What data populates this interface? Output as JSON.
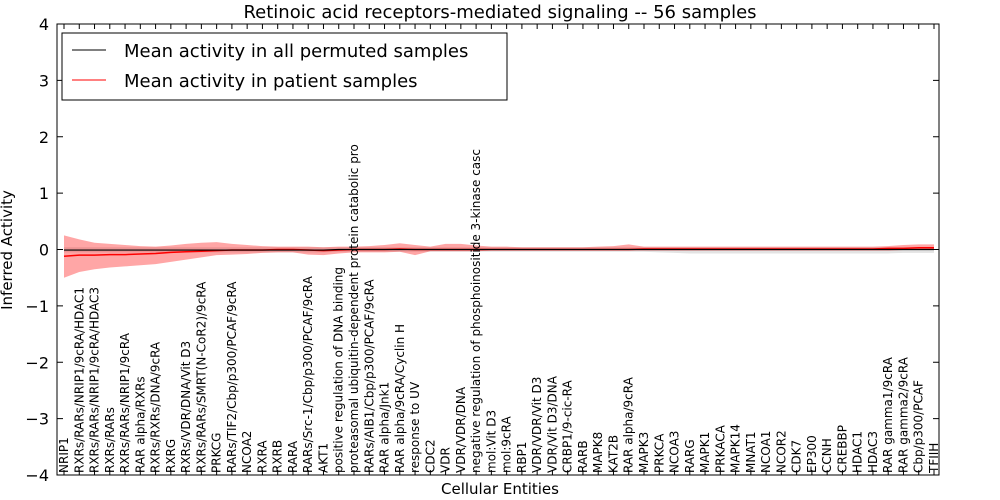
{
  "chart_data": {
    "type": "line",
    "title": "Retinoic acid receptors-mediated signaling -- 56 samples",
    "xlabel": "Cellular Entities",
    "ylabel": "Inferred Activity",
    "ylim": [
      -4,
      4
    ],
    "yticks": [
      "4",
      "3",
      "2",
      "1",
      "0",
      "−1",
      "−2",
      "−3",
      "−4"
    ],
    "legend": {
      "placement": "top-left",
      "entries": [
        {
          "label": "Mean activity in all permuted samples",
          "color": "#000000"
        },
        {
          "label": "Mean activity in patient samples",
          "color": "#ff0000"
        }
      ]
    },
    "categories": [
      "NRIP1",
      "RXRs/RARs/NRIP1/9cRA/HDAC1",
      "RXRs/RARs/NRIP1/9cRA/HDAC3",
      "RXRs/RARs",
      "RXRs/RARs/NRIP1/9cRA",
      "RAR alpha/RXRs",
      "RXRs/RXRs/DNA/9cRA",
      "RXRG",
      "RXRs/VDR/DNA/Vit D3",
      "RXRs/RARs/SMRT(N-CoR2)/9cRA",
      "PRKCG",
      "RARs/TIF2/Cbp/p300/PCAF/9cRA",
      "NCOA2",
      "RXRA",
      "RXRB",
      "RARA",
      "RARs/Src-1/Cbp/p300/PCAF/9cRA",
      "AKT1",
      "positive regulation of DNA binding",
      "proteasomal ubiquitin-dependent protein catabolic pro",
      "RARs/AIB1/Cbp/p300/PCAF/9cRA",
      "RAR alpha/Jnk1",
      "RAR alpha/9cRA/Cyclin H",
      "response to UV",
      "CDC2",
      "VDR",
      "VDR/VDR/DNA",
      "negative regulation of phosphoinositide 3-kinase casc",
      "mol:Vit D3",
      "mol:9cRA",
      "RBP1",
      "VDR/VDR/Vit D3",
      "VDR/Vit D3/DNA",
      "CRBP1/9-cic-RA",
      "RARB",
      "MAPK8",
      "KAT2B",
      "RAR alpha/9cRA",
      "MAPK3",
      "PRKCA",
      "NCOA3",
      "RARG",
      "MAPK1",
      "PRKACA",
      "MAPK14",
      "MNAT1",
      "NCOA1",
      "NCOR2",
      "CDK7",
      "EP300",
      "CCNH",
      "CREBBP",
      "HDAC1",
      "HDAC3",
      "RAR gamma1/9cRA",
      "RAR gamma2/9cRA",
      "Cbp/p300/PCAF",
      "TFIIH"
    ],
    "series": [
      {
        "name": "Mean activity in all permuted samples",
        "color": "#000000",
        "values": [
          -0.01,
          -0.01,
          -0.01,
          -0.01,
          -0.01,
          -0.01,
          -0.01,
          -0.01,
          -0.01,
          -0.01,
          -0.01,
          -0.01,
          -0.01,
          -0.01,
          -0.01,
          -0.01,
          -0.01,
          -0.01,
          0.0,
          0.0,
          0.0,
          0.0,
          0.0,
          0.0,
          0.0,
          0.0,
          0.0,
          0.0,
          0.0,
          0.0,
          0.0,
          0.0,
          0.0,
          0.0,
          0.0,
          0.0,
          0.0,
          0.0,
          0.0,
          0.0,
          0.0,
          0.0,
          0.0,
          0.0,
          0.0,
          0.0,
          0.0,
          0.0,
          0.0,
          0.0,
          0.0,
          0.0,
          0.0,
          0.0,
          0.0,
          0.0,
          0.0,
          0.0
        ],
        "band_low": [
          -0.05,
          -0.05,
          -0.05,
          -0.05,
          -0.05,
          -0.05,
          -0.05,
          -0.05,
          -0.05,
          -0.05,
          -0.05,
          -0.05,
          -0.05,
          -0.05,
          -0.05,
          -0.05,
          -0.05,
          -0.05,
          -0.04,
          -0.04,
          -0.04,
          -0.04,
          -0.04,
          -0.04,
          -0.04,
          -0.04,
          -0.04,
          -0.04,
          -0.04,
          -0.04,
          -0.04,
          -0.04,
          -0.04,
          -0.04,
          -0.04,
          -0.04,
          -0.04,
          -0.04,
          -0.04,
          -0.05,
          -0.06,
          -0.07,
          -0.07,
          -0.07,
          -0.07,
          -0.07,
          -0.07,
          -0.07,
          -0.07,
          -0.07,
          -0.07,
          -0.07,
          -0.07,
          -0.07,
          -0.07,
          -0.06,
          -0.06,
          -0.06
        ],
        "band_high": [
          0.04,
          0.04,
          0.04,
          0.04,
          0.04,
          0.04,
          0.04,
          0.04,
          0.04,
          0.04,
          0.04,
          0.04,
          0.04,
          0.04,
          0.04,
          0.04,
          0.04,
          0.04,
          0.04,
          0.04,
          0.04,
          0.04,
          0.04,
          0.04,
          0.04,
          0.04,
          0.04,
          0.04,
          0.04,
          0.04,
          0.04,
          0.04,
          0.04,
          0.04,
          0.04,
          0.04,
          0.04,
          0.04,
          0.04,
          0.04,
          0.04,
          0.04,
          0.04,
          0.04,
          0.04,
          0.04,
          0.04,
          0.04,
          0.04,
          0.04,
          0.04,
          0.04,
          0.04,
          0.04,
          0.04,
          0.04,
          0.04,
          0.04
        ]
      },
      {
        "name": "Mean activity in patient samples",
        "color": "#ff0000",
        "values": [
          -0.12,
          -0.1,
          -0.1,
          -0.09,
          -0.09,
          -0.08,
          -0.07,
          -0.05,
          -0.04,
          -0.03,
          -0.02,
          -0.01,
          -0.01,
          -0.01,
          0.0,
          0.0,
          -0.01,
          -0.02,
          -0.01,
          0.0,
          0.0,
          0.0,
          0.01,
          0.0,
          0.0,
          0.0,
          0.0,
          0.0,
          0.0,
          0.0,
          0.0,
          0.0,
          0.0,
          0.0,
          0.0,
          0.0,
          0.0,
          0.0,
          0.01,
          0.01,
          0.01,
          0.01,
          0.01,
          0.01,
          0.01,
          0.01,
          0.01,
          0.01,
          0.01,
          0.01,
          0.01,
          0.01,
          0.01,
          0.01,
          0.02,
          0.02,
          0.03,
          0.03
        ],
        "band_low": [
          -0.5,
          -0.4,
          -0.35,
          -0.32,
          -0.3,
          -0.28,
          -0.26,
          -0.22,
          -0.18,
          -0.14,
          -0.1,
          -0.09,
          -0.08,
          -0.06,
          -0.05,
          -0.05,
          -0.09,
          -0.1,
          -0.07,
          -0.05,
          -0.05,
          -0.05,
          -0.04,
          -0.1,
          -0.03,
          -0.03,
          -0.03,
          -0.03,
          -0.02,
          -0.02,
          -0.02,
          -0.02,
          -0.02,
          -0.02,
          -0.02,
          -0.02,
          -0.02,
          -0.02,
          -0.02,
          -0.02,
          -0.02,
          -0.02,
          -0.02,
          -0.02,
          -0.02,
          -0.02,
          -0.02,
          -0.02,
          -0.02,
          -0.02,
          -0.02,
          -0.02,
          -0.02,
          -0.02,
          -0.02,
          -0.01,
          -0.01,
          -0.01
        ],
        "band_high": [
          0.25,
          0.18,
          0.12,
          0.1,
          0.08,
          0.06,
          0.05,
          0.07,
          0.1,
          0.12,
          0.13,
          0.1,
          0.08,
          0.06,
          0.05,
          0.05,
          0.05,
          0.04,
          0.05,
          0.05,
          0.06,
          0.08,
          0.11,
          0.08,
          0.05,
          0.1,
          0.1,
          0.07,
          0.05,
          0.05,
          0.04,
          0.04,
          0.04,
          0.04,
          0.04,
          0.05,
          0.06,
          0.09,
          0.05,
          0.05,
          0.05,
          0.05,
          0.05,
          0.05,
          0.05,
          0.05,
          0.05,
          0.05,
          0.05,
          0.05,
          0.05,
          0.05,
          0.05,
          0.05,
          0.06,
          0.08,
          0.09,
          0.09
        ]
      }
    ]
  }
}
